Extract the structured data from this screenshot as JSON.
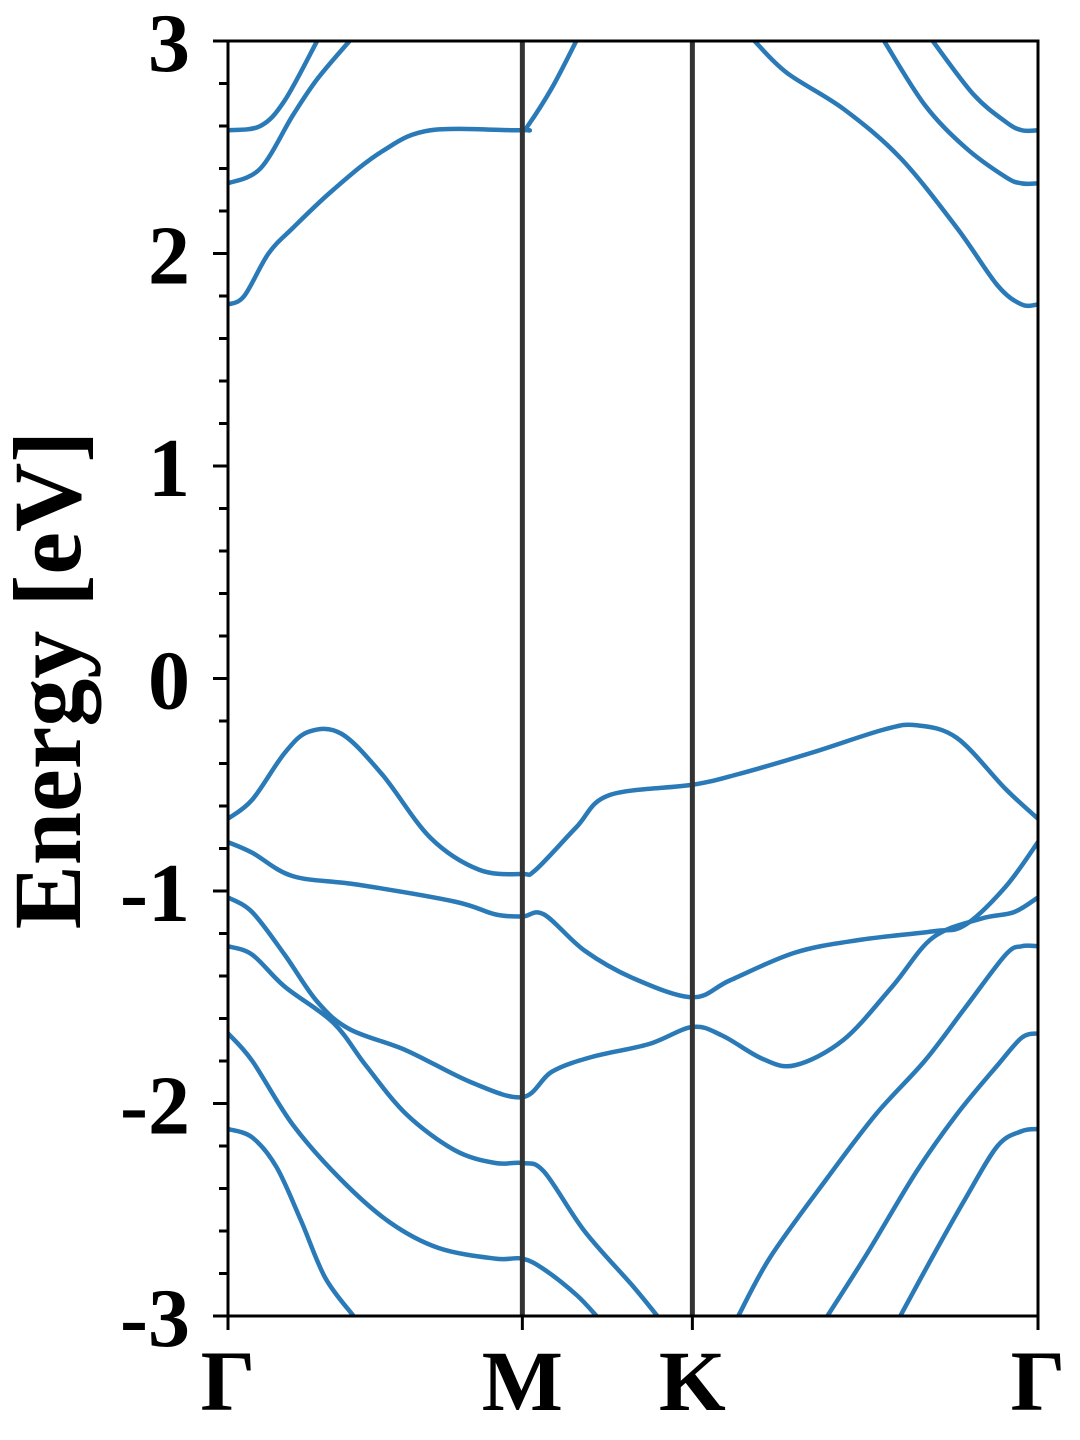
{
  "chart_data": {
    "type": "line",
    "title": "",
    "xlabel": "",
    "ylabel": "Energy [eV]",
    "ylim": [
      -3,
      3
    ],
    "yticks": [
      -3,
      -2,
      -1,
      0,
      1,
      2,
      3
    ],
    "ytick_labels": [
      "-3",
      "-2",
      "-1",
      "0",
      "1",
      "2",
      "3"
    ],
    "minor_ytick_step": 0.2,
    "xlim": [
      0,
      1
    ],
    "kpoints": [
      {
        "label": "Γ",
        "x": 0.0
      },
      {
        "label": "M",
        "x": 0.3634
      },
      {
        "label": "K",
        "x": 0.5733
      },
      {
        "label": "Γ",
        "x": 1.0
      }
    ],
    "grid": false,
    "legend": "none",
    "line_color": "#2a7ab8",
    "divider_color": "#333333",
    "series": [
      {
        "values": [
          [
            0.0,
            -2.12
          ],
          [
            0.03,
            -2.16
          ],
          [
            0.06,
            -2.3
          ],
          [
            0.09,
            -2.55
          ],
          [
            0.12,
            -2.82
          ],
          [
            0.155,
            -3.0
          ]
        ]
      },
      {
        "values": [
          [
            0.0,
            -1.67
          ],
          [
            0.03,
            -1.8
          ],
          [
            0.08,
            -2.1
          ],
          [
            0.14,
            -2.36
          ],
          [
            0.2,
            -2.56
          ],
          [
            0.26,
            -2.68
          ],
          [
            0.33,
            -2.73
          ],
          [
            0.3634,
            -2.73
          ],
          [
            0.39,
            -2.78
          ],
          [
            0.43,
            -2.9
          ],
          [
            0.455,
            -3.0
          ]
        ]
      },
      {
        "values": [
          [
            0.0,
            -1.26
          ],
          [
            0.03,
            -1.3
          ],
          [
            0.07,
            -1.45
          ],
          [
            0.13,
            -1.62
          ],
          [
            0.17,
            -1.82
          ],
          [
            0.22,
            -2.05
          ],
          [
            0.28,
            -2.22
          ],
          [
            0.33,
            -2.28
          ],
          [
            0.3634,
            -2.28
          ],
          [
            0.39,
            -2.32
          ],
          [
            0.44,
            -2.6
          ],
          [
            0.5,
            -2.86
          ],
          [
            0.53,
            -3.0
          ]
        ]
      },
      {
        "values": [
          [
            0.0,
            -1.03
          ],
          [
            0.03,
            -1.1
          ],
          [
            0.07,
            -1.3
          ],
          [
            0.11,
            -1.52
          ],
          [
            0.15,
            -1.65
          ],
          [
            0.22,
            -1.75
          ],
          [
            0.3,
            -1.9
          ],
          [
            0.3634,
            -1.97
          ],
          [
            0.4,
            -1.85
          ],
          [
            0.45,
            -1.78
          ],
          [
            0.52,
            -1.72
          ],
          [
            0.5733,
            -1.64
          ],
          [
            0.61,
            -1.68
          ],
          [
            0.66,
            -1.79
          ],
          [
            0.7,
            -1.82
          ],
          [
            0.76,
            -1.7
          ],
          [
            0.82,
            -1.45
          ],
          [
            0.87,
            -1.22
          ],
          [
            0.93,
            -1.13
          ],
          [
            0.97,
            -1.1
          ],
          [
            1.0,
            -1.03
          ]
        ]
      },
      {
        "values": [
          [
            0.0,
            -0.77
          ],
          [
            0.03,
            -0.82
          ],
          [
            0.08,
            -0.93
          ],
          [
            0.16,
            -0.97
          ],
          [
            0.28,
            -1.05
          ],
          [
            0.33,
            -1.11
          ],
          [
            0.3634,
            -1.12
          ],
          [
            0.39,
            -1.11
          ],
          [
            0.44,
            -1.28
          ],
          [
            0.5,
            -1.41
          ],
          [
            0.5733,
            -1.5
          ],
          [
            0.62,
            -1.42
          ],
          [
            0.7,
            -1.29
          ],
          [
            0.78,
            -1.23
          ],
          [
            0.87,
            -1.19
          ],
          [
            0.91,
            -1.16
          ],
          [
            0.96,
            -0.98
          ],
          [
            1.0,
            -0.77
          ]
        ]
      },
      {
        "values": [
          [
            0.0,
            -0.66
          ],
          [
            0.03,
            -0.57
          ],
          [
            0.07,
            -0.35
          ],
          [
            0.1,
            -0.25
          ],
          [
            0.14,
            -0.26
          ],
          [
            0.19,
            -0.45
          ],
          [
            0.25,
            -0.75
          ],
          [
            0.31,
            -0.9
          ],
          [
            0.3634,
            -0.92
          ],
          [
            0.38,
            -0.9
          ],
          [
            0.43,
            -0.7
          ],
          [
            0.47,
            -0.55
          ],
          [
            0.5733,
            -0.5
          ],
          [
            0.63,
            -0.45
          ],
          [
            0.72,
            -0.35
          ],
          [
            0.81,
            -0.24
          ],
          [
            0.85,
            -0.22
          ],
          [
            0.9,
            -0.28
          ],
          [
            0.96,
            -0.52
          ],
          [
            1.0,
            -0.66
          ]
        ]
      },
      {
        "values": [
          [
            0.0,
            1.76
          ],
          [
            0.02,
            1.8
          ],
          [
            0.05,
            2.0
          ],
          [
            0.08,
            2.12
          ],
          [
            0.13,
            2.3
          ],
          [
            0.19,
            2.48
          ],
          [
            0.25,
            2.58
          ],
          [
            0.3634,
            2.58
          ],
          [
            0.37,
            2.6
          ],
          [
            0.4,
            2.78
          ],
          [
            0.43,
            3.0
          ]
        ]
      },
      {
        "values": [
          [
            0.0,
            2.33
          ],
          [
            0.04,
            2.4
          ],
          [
            0.08,
            2.65
          ],
          [
            0.11,
            2.82
          ],
          [
            0.15,
            3.0
          ]
        ]
      },
      {
        "values": [
          [
            0.0,
            2.58
          ],
          [
            0.04,
            2.6
          ],
          [
            0.07,
            2.72
          ],
          [
            0.11,
            3.0
          ]
        ]
      },
      {
        "values": [
          [
            0.65,
            3.0
          ],
          [
            0.69,
            2.85
          ],
          [
            0.76,
            2.68
          ],
          [
            0.83,
            2.45
          ],
          [
            0.9,
            2.12
          ],
          [
            0.95,
            1.85
          ],
          [
            0.98,
            1.76
          ],
          [
            1.0,
            1.76
          ]
        ]
      },
      {
        "values": [
          [
            0.81,
            3.0
          ],
          [
            0.86,
            2.7
          ],
          [
            0.91,
            2.5
          ],
          [
            0.96,
            2.36
          ],
          [
            0.98,
            2.33
          ],
          [
            1.0,
            2.33
          ]
        ]
      },
      {
        "values": [
          [
            0.87,
            3.0
          ],
          [
            0.92,
            2.75
          ],
          [
            0.96,
            2.62
          ],
          [
            0.98,
            2.58
          ],
          [
            1.0,
            2.58
          ]
        ]
      },
      {
        "values": [
          [
            0.63,
            -3.0
          ],
          [
            0.67,
            -2.72
          ],
          [
            0.74,
            -2.35
          ],
          [
            0.8,
            -2.05
          ],
          [
            0.86,
            -1.8
          ],
          [
            0.91,
            -1.55
          ],
          [
            0.96,
            -1.3
          ],
          [
            0.98,
            -1.26
          ],
          [
            1.0,
            -1.26
          ]
        ]
      },
      {
        "values": [
          [
            0.74,
            -3.0
          ],
          [
            0.79,
            -2.7
          ],
          [
            0.85,
            -2.32
          ],
          [
            0.9,
            -2.05
          ],
          [
            0.95,
            -1.82
          ],
          [
            0.98,
            -1.69
          ],
          [
            1.0,
            -1.67
          ]
        ]
      },
      {
        "values": [
          [
            0.83,
            -3.0
          ],
          [
            0.87,
            -2.72
          ],
          [
            0.91,
            -2.45
          ],
          [
            0.95,
            -2.2
          ],
          [
            0.98,
            -2.13
          ],
          [
            1.0,
            -2.12
          ]
        ]
      }
    ]
  }
}
